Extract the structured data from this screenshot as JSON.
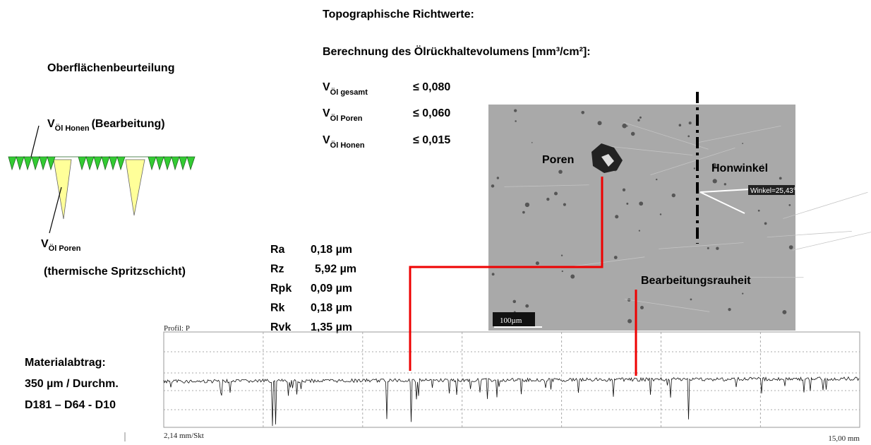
{
  "title": "Topographische Richtwerte:",
  "subtitle": "Berechnung des Ölrückhaltevolumens [mm³/cm²]:",
  "volumes": [
    {
      "symbol": "V",
      "subscript": "Öl gesamt",
      "value": "≤ 0,080"
    },
    {
      "symbol": "V",
      "subscript": "Öl Poren",
      "value": "≤  0,060"
    },
    {
      "symbol": "V",
      "subscript": "Öl Honen",
      "value": "≤ 0,015"
    }
  ],
  "assessment": {
    "heading": "Oberflächenbeurteilung",
    "honing": {
      "symbol": "V",
      "subscript": "Öl Honen",
      "text": "(Bearbeitung)"
    },
    "pores": {
      "symbol": "V",
      "subscript": "Öl Poren",
      "text": "(thermische Spritzschicht)"
    }
  },
  "roughness": [
    [
      "Ra",
      "0,18 µm"
    ],
    [
      "Rz",
      "5,92 µm"
    ],
    [
      "Rpk",
      "0,09 µm"
    ],
    [
      "Rk",
      "0,18 µm"
    ],
    [
      "Rvk",
      "1,35 µm"
    ]
  ],
  "micrograph": {
    "pores": "Poren",
    "honing_angle": "Honwinkel",
    "angle_label": "Winkel=25,43°",
    "roughness": "Bearbeitungsrauheit",
    "scale": "100µm"
  },
  "profile": {
    "title": "Profil: P",
    "scale": "2,14 mm/Skt",
    "length": "15,00 mm"
  },
  "material": [
    "Materialabtrag:",
    "350 µm / Durchm.",
    "D181 – D64 - D10"
  ]
}
